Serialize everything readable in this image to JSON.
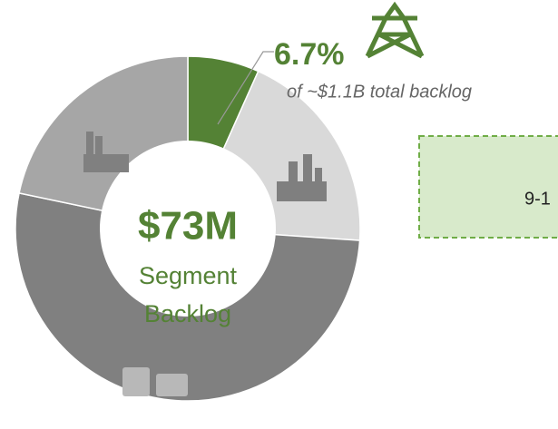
{
  "chart_data": {
    "type": "donut",
    "categories": [
      null,
      null,
      null,
      null
    ],
    "values": [
      6.7,
      19.4,
      52.2,
      21.7
    ],
    "value_labels": [
      "6.7%",
      null,
      null,
      null
    ],
    "colors": [
      "#548235",
      "#d9d9d9",
      "#808080",
      "#a6a6a6"
    ],
    "annotation": "of ~$1.1B total backlog",
    "center_value": "$73M",
    "center_label": [
      "Segment",
      "Backlog"
    ],
    "box_text": "9-1"
  }
}
